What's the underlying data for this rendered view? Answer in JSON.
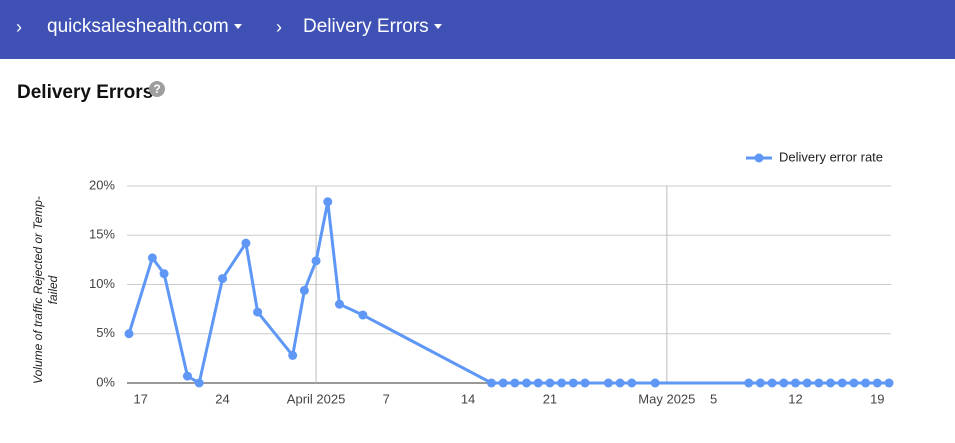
{
  "header": {
    "breadcrumbs": [
      "quicksaleshealth.com",
      "Delivery Errors"
    ]
  },
  "page_title": "Delivery Errors",
  "chart_data": {
    "type": "line",
    "y_label": "Volume of traffic Rejected or Temp-failed",
    "x": [
      "2025-03-16",
      "2025-03-18",
      "2025-03-19",
      "2025-03-21",
      "2025-03-22",
      "2025-03-24",
      "2025-03-26",
      "2025-03-27",
      "2025-03-30",
      "2025-03-31",
      "2025-04-01",
      "2025-04-02",
      "2025-04-03",
      "2025-04-05",
      "2025-04-16",
      "2025-04-17",
      "2025-04-18",
      "2025-04-19",
      "2025-04-20",
      "2025-04-21",
      "2025-04-22",
      "2025-04-23",
      "2025-04-24",
      "2025-04-26",
      "2025-04-27",
      "2025-04-28",
      "2025-04-30",
      "2025-05-08",
      "2025-05-09",
      "2025-05-10",
      "2025-05-11",
      "2025-05-12",
      "2025-05-13",
      "2025-05-14",
      "2025-05-15",
      "2025-05-16",
      "2025-05-17",
      "2025-05-18",
      "2025-05-19",
      "2025-05-20"
    ],
    "series": [
      {
        "name": "Delivery error rate",
        "color": "#5e97f6",
        "values": [
          5,
          12.7,
          11.1,
          0.7,
          0,
          10.6,
          14.2,
          7.2,
          2.8,
          9.4,
          12.4,
          18.4,
          8,
          6.9,
          0,
          0,
          0,
          0,
          0,
          0,
          0,
          0,
          0,
          0,
          0,
          0,
          0,
          0,
          0,
          0,
          0,
          0,
          0,
          0,
          0,
          0,
          0,
          0,
          0,
          0
        ]
      }
    ],
    "xlim": [
      "2025-03-16",
      "2025-05-20"
    ],
    "xticks": [
      {
        "value": "2025-03-17",
        "label": "17"
      },
      {
        "value": "2025-03-24",
        "label": "24"
      },
      {
        "value": "2025-04-01",
        "label": "April 2025"
      },
      {
        "value": "2025-04-07",
        "label": "7"
      },
      {
        "value": "2025-04-14",
        "label": "14"
      },
      {
        "value": "2025-04-21",
        "label": "21"
      },
      {
        "value": "2025-05-01",
        "label": "May 2025"
      },
      {
        "value": "2025-05-05",
        "label": "5"
      },
      {
        "value": "2025-05-12",
        "label": "12"
      },
      {
        "value": "2025-05-19",
        "label": "19"
      }
    ],
    "ylim": [
      0,
      20
    ],
    "yticks": [
      {
        "value": 0,
        "label": "0%"
      },
      {
        "value": 5,
        "label": "5%"
      },
      {
        "value": 10,
        "label": "10%"
      },
      {
        "value": 15,
        "label": "15%"
      },
      {
        "value": 20,
        "label": "20%"
      }
    ],
    "grid": true,
    "legend": "top-right"
  }
}
